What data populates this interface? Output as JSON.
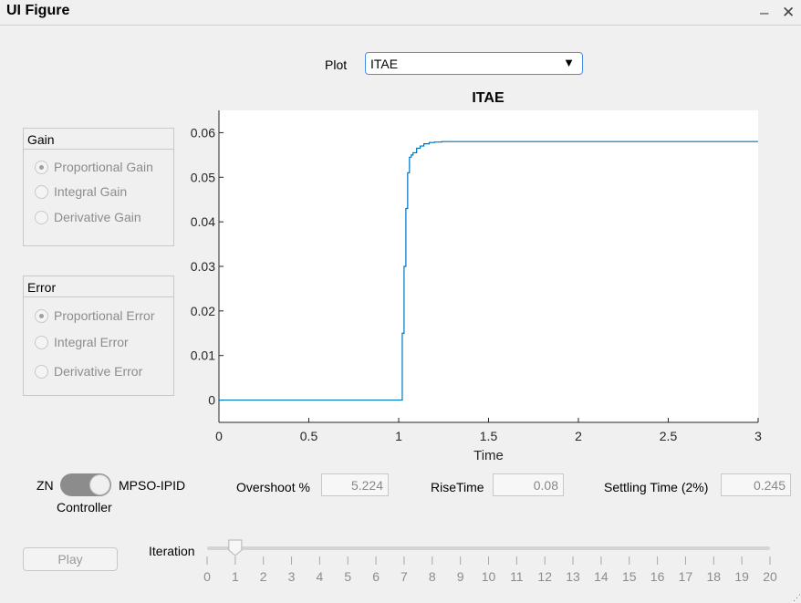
{
  "window": {
    "title": "UI Figure",
    "minimize_glyph": "–",
    "close_glyph": "✕"
  },
  "plot_selector": {
    "label": "Plot",
    "value": "ITAE",
    "arrow": "▼"
  },
  "gain_panel": {
    "title": "Gain",
    "options": [
      {
        "label": "Proportional Gain",
        "selected": true
      },
      {
        "label": "Integral Gain",
        "selected": false
      },
      {
        "label": "Derivative Gain",
        "selected": false
      }
    ]
  },
  "error_panel": {
    "title": "Error",
    "options": [
      {
        "label": "Proportional Error",
        "selected": true
      },
      {
        "label": "Integral Error",
        "selected": false
      },
      {
        "label": "Derivative Error",
        "selected": false
      }
    ]
  },
  "controller_switch": {
    "left_label": "ZN",
    "right_label": "MPSO-IPID",
    "caption": "Controller",
    "state": "MPSO-IPID"
  },
  "metrics": {
    "overshoot_label": "Overshoot %",
    "overshoot_value": "5.224",
    "risetime_label": "RiseTime",
    "risetime_value": "0.08",
    "settling_label": "Settling Time (2%)",
    "settling_value": "0.245"
  },
  "play_button": {
    "label": "Play"
  },
  "iteration_slider": {
    "label": "Iteration",
    "min": 0,
    "max": 20,
    "value": 1,
    "ticks": [
      "0",
      "1",
      "2",
      "3",
      "4",
      "5",
      "6",
      "7",
      "8",
      "9",
      "10",
      "11",
      "12",
      "13",
      "14",
      "15",
      "16",
      "17",
      "18",
      "19",
      "20"
    ]
  },
  "chart_data": {
    "type": "line",
    "title": "ITAE",
    "xlabel": "Time",
    "ylabel": "",
    "xlim": [
      0,
      3
    ],
    "ylim": [
      -0.005,
      0.065
    ],
    "xticks": [
      "0",
      "0.5",
      "1",
      "1.5",
      "2",
      "2.5",
      "3"
    ],
    "xtick_values": [
      0,
      0.5,
      1,
      1.5,
      2,
      2.5,
      3
    ],
    "yticks": [
      "0",
      "0.01",
      "0.02",
      "0.03",
      "0.04",
      "0.05",
      "0.06"
    ],
    "ytick_values": [
      0,
      0.01,
      0.02,
      0.03,
      0.04,
      0.05,
      0.06
    ],
    "color": "#0072bd",
    "series": [
      {
        "step": true,
        "x": [
          0,
          1.02,
          1.02,
          1.03,
          1.04,
          1.05,
          1.06,
          1.07,
          1.08,
          1.1,
          1.12,
          1.14,
          1.17,
          1.2,
          1.24,
          1.3,
          3
        ],
        "y": [
          0,
          0,
          0.015,
          0.03,
          0.043,
          0.051,
          0.0545,
          0.055,
          0.0555,
          0.0565,
          0.057,
          0.0575,
          0.0578,
          0.0579,
          0.058,
          0.058,
          0.058
        ]
      }
    ]
  },
  "colors": {
    "line": "#0072bd",
    "focus_border": "#4a90e2"
  },
  "icons": {
    "dropdown": "triangle-down-icon",
    "minimize": "minimize-icon",
    "close": "close-icon"
  }
}
